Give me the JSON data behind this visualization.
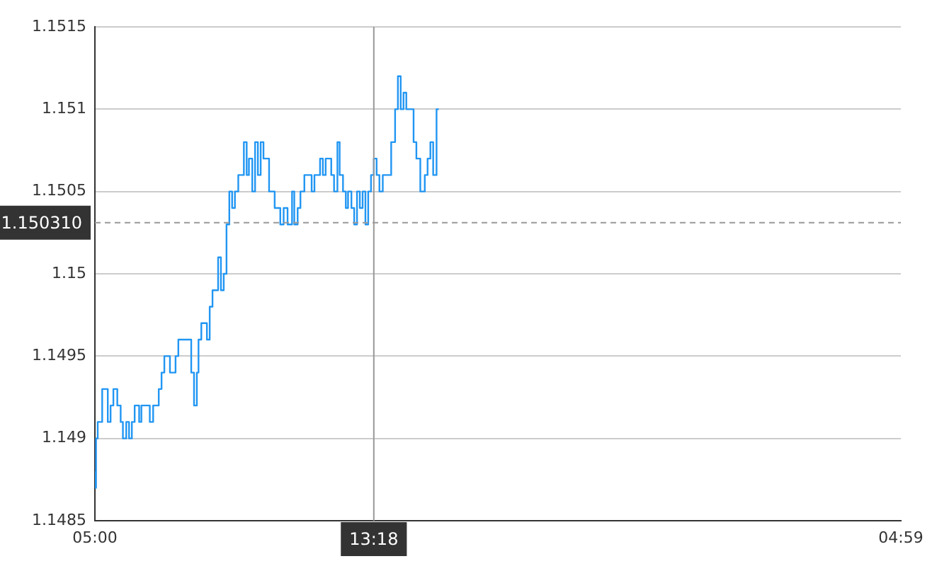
{
  "chart_data": {
    "type": "step",
    "x": [
      "--01-01T05:00",
      "--01-01T05:02",
      "--01-01T05:05",
      "--01-01T05:13",
      "--01-01T05:23",
      "--01-01T05:28",
      "--01-01T05:33",
      "--01-01T05:40",
      "--01-01T05:46",
      "--01-01T05:50",
      "--01-01T05:56",
      "--01-01T06:01",
      "--01-01T06:06",
      "--01-01T06:11",
      "--01-01T06:19",
      "--01-01T06:23",
      "--01-01T06:31",
      "--01-01T06:38",
      "--01-01T06:44",
      "--01-01T06:54",
      "--01-01T06:59",
      "--01-01T07:04",
      "--01-01T07:14",
      "--01-01T07:24",
      "--01-01T07:29",
      "--01-01T07:42",
      "--01-01T07:52",
      "--01-01T07:57",
      "--01-01T08:02",
      "--01-01T08:05",
      "--01-01T08:10",
      "--01-01T08:20",
      "--01-01T08:25",
      "--01-01T08:30",
      "--01-01T08:40",
      "--01-01T08:45",
      "--01-01T08:50",
      "--01-01T08:55",
      "--01-01T09:00",
      "--01-01T09:05",
      "--01-01T09:10",
      "--01-01T09:16",
      "--01-01T09:26",
      "--01-01T09:31",
      "--01-01T09:35",
      "--01-01T09:41",
      "--01-01T09:46",
      "--01-01T09:51",
      "--01-01T09:56",
      "--01-01T10:01",
      "--01-01T10:06",
      "--01-01T10:11",
      "--01-01T10:21",
      "--01-01T10:31",
      "--01-01T10:37",
      "--01-01T10:44",
      "--01-01T10:52",
      "--01-01T10:56",
      "--01-01T11:02",
      "--01-01T11:07",
      "--01-01T11:14",
      "--01-01T11:19",
      "--01-01T11:27",
      "--01-01T11:32",
      "--01-01T11:42",
      "--01-01T11:47",
      "--01-01T11:52",
      "--01-01T11:57",
      "--01-01T12:02",
      "--01-01T12:07",
      "--01-01T12:13",
      "--01-01T12:17",
      "--01-01T12:23",
      "--01-01T12:28",
      "--01-01T12:32",
      "--01-01T12:38",
      "--01-01T12:43",
      "--01-01T12:48",
      "--01-01T12:53",
      "--01-01T12:58",
      "--01-01T13:03",
      "--01-01T13:08",
      "--01-01T13:13",
      "--01-01T13:18",
      "--01-01T13:23",
      "--01-01T13:28",
      "--01-01T13:34",
      "--01-01T13:38",
      "--01-01T13:49",
      "--01-01T13:56",
      "--01-01T14:01",
      "--01-01T14:06",
      "--01-01T14:11",
      "--01-01T14:16",
      "--01-01T14:22",
      "--01-01T14:29",
      "--01-01T14:34",
      "--01-01T14:41",
      "--01-01T14:49",
      "--01-01T14:54",
      "--01-01T14:59",
      "--01-01T15:04",
      "--01-01T15:10",
      "--01-01T15:14"
    ],
    "series": [
      {
        "color": "#2196f3",
        "values": [
          1.1488,
          1.1487,
          1.149,
          1.1491,
          1.1493,
          1.1491,
          1.1492,
          1.1493,
          1.1492,
          1.1491,
          1.149,
          1.1491,
          1.149,
          1.1491,
          1.1492,
          1.1491,
          1.1492,
          1.1492,
          1.1491,
          1.1492,
          1.1493,
          1.1494,
          1.1495,
          1.1494,
          1.1495,
          1.1496,
          1.1496,
          1.1494,
          1.1492,
          1.1494,
          1.1496,
          1.1497,
          1.1496,
          1.1498,
          1.1499,
          1.1501,
          1.1499,
          1.15,
          1.1503,
          1.1505,
          1.1504,
          1.1505,
          1.1506,
          1.1508,
          1.1506,
          1.1507,
          1.1505,
          1.1508,
          1.1506,
          1.1508,
          1.1507,
          1.1507,
          1.1505,
          1.1504,
          1.1503,
          1.1504,
          1.1503,
          1.1505,
          1.1503,
          1.1504,
          1.1505,
          1.1506,
          1.1506,
          1.1505,
          1.1506,
          1.1507,
          1.1506,
          1.1507,
          1.1507,
          1.1506,
          1.1505,
          1.1508,
          1.1506,
          1.1505,
          1.1504,
          1.1505,
          1.1504,
          1.1503,
          1.1505,
          1.1504,
          1.1505,
          1.1503,
          1.1505,
          1.1506,
          1.1507,
          1.1506,
          1.1505,
          1.1506,
          1.1506,
          1.1508,
          1.151,
          1.1512,
          1.151,
          1.1511,
          1.151,
          1.151,
          1.1508,
          1.1507,
          1.1505,
          1.1506,
          1.1507,
          1.1508,
          1.1506,
          1.151
        ]
      }
    ],
    "xlim": [
      "--01-01T05:00",
      "--01-02T04:59"
    ],
    "xticks": [
      {
        "value": "--01-01T05:00",
        "label": "05:00"
      },
      {
        "value": "--01-02T04:59",
        "label": "04:59"
      }
    ],
    "ylim": [
      1.1485,
      1.1515
    ],
    "yticks": [
      1.1485,
      1.149,
      1.1495,
      1.15,
      1.1505,
      1.151,
      1.1515
    ],
    "grid": "y",
    "marker": "none",
    "line_style": "solid",
    "legend": false,
    "ref_lines": [
      {
        "axis": "x",
        "value": "--01-01T13:18",
        "label": "13:18",
        "color": "#999999",
        "line_style": "solid"
      },
      {
        "axis": "y",
        "value": 1.15031,
        "label": "1.150310",
        "color": "#999999",
        "line_style": "dashed"
      }
    ]
  }
}
